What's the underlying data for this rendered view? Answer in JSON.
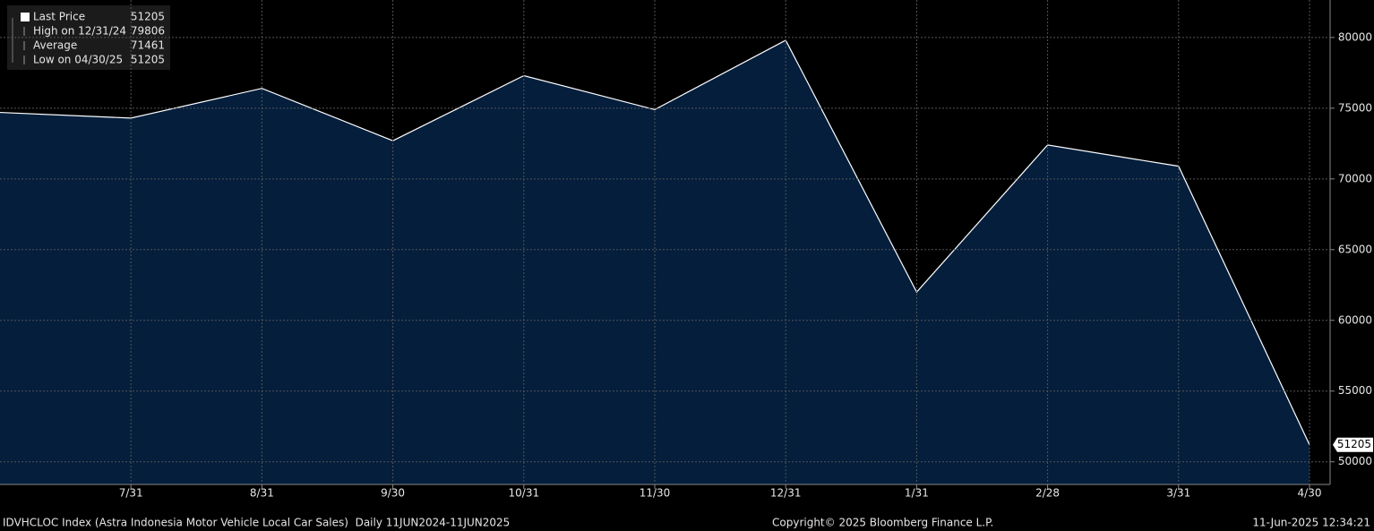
{
  "chart_data": {
    "type": "area",
    "categories": [
      null,
      "7/31",
      "8/31",
      "9/30",
      "10/31",
      "11/30",
      "12/31",
      "1/31",
      "2/28",
      "3/31",
      "4/30"
    ],
    "values": [
      74700,
      74300,
      76400,
      72700,
      77300,
      74900,
      79806,
      62000,
      72400,
      70900,
      51205
    ],
    "color": "#ffffff",
    "fill": "#041e3c",
    "ylim": [
      48400,
      82650
    ],
    "yticks": [
      50000,
      55000,
      60000,
      65000,
      70000,
      75000,
      80000
    ],
    "grid": true,
    "legend": [
      {
        "label": "Last Price",
        "value": 51205
      },
      {
        "label": "High on 12/31/24",
        "value": 79806
      },
      {
        "label": "Average",
        "value": 71461
      },
      {
        "label": "Low on 04/30/25",
        "value": 51205
      }
    ]
  },
  "footer": {
    "left": "IDVHCLOC Index (Astra Indonesia Motor Vehicle Local Car Sales)  Daily 11JUN2024-11JUN2025",
    "center": "Copyright© 2025 Bloomberg Finance L.P.",
    "right": "11-Jun-2025 12:34:21"
  }
}
